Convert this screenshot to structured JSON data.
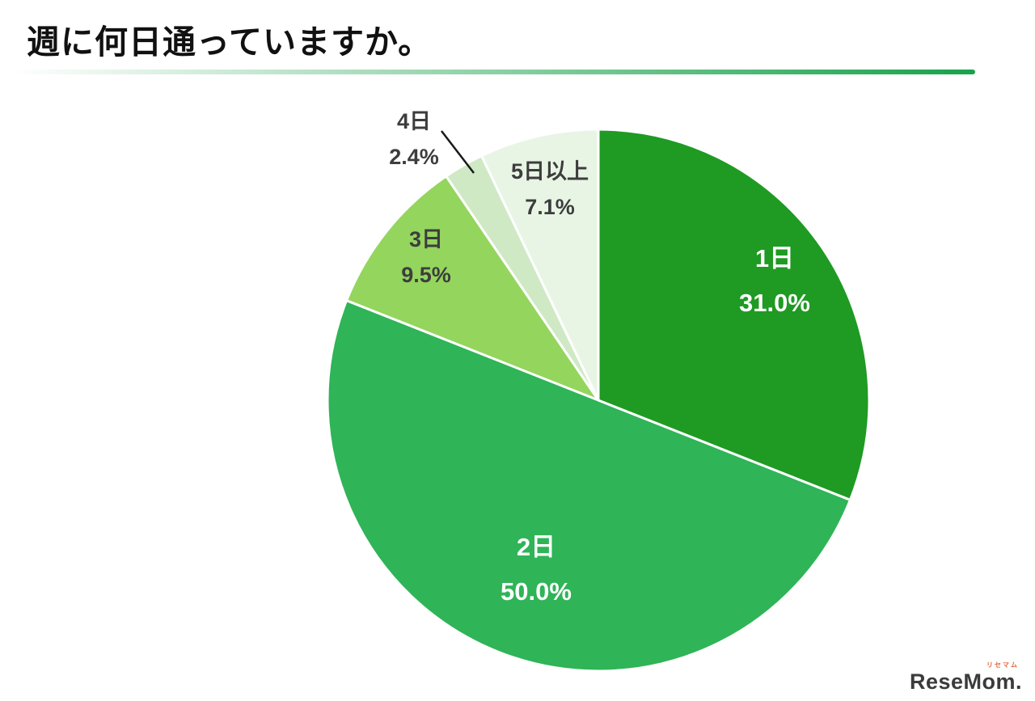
{
  "page": {
    "title": "週に何日通っていますか。",
    "accent_color": "#18a24b",
    "background_color": "#ffffff"
  },
  "chart_data": {
    "type": "pie",
    "title": "週に何日通っていますか。",
    "start_angle_deg": 0,
    "direction": "clockwise",
    "legend_position": "none",
    "slices": [
      {
        "label": "1日",
        "value": 31.0,
        "display": "31.0%",
        "color": "#1f9a23",
        "label_color": "#ffffff",
        "label_position": "inside"
      },
      {
        "label": "2日",
        "value": 50.0,
        "display": "50.0%",
        "color": "#2fb457",
        "label_color": "#ffffff",
        "label_position": "inside"
      },
      {
        "label": "3日",
        "value": 9.5,
        "display": "9.5%",
        "color": "#94d55e",
        "label_color": "#3d3d3d",
        "label_position": "outside"
      },
      {
        "label": "4日",
        "value": 2.4,
        "display": "2.4%",
        "color": "#cfe9c5",
        "label_color": "#3d3d3d",
        "label_position": "outside",
        "leader_line": true
      },
      {
        "label": "5日以上",
        "value": 7.1,
        "display": "7.1%",
        "color": "#e8f5e5",
        "label_color": "#3d3d3d",
        "label_position": "outside"
      }
    ]
  },
  "footer": {
    "logo_text": "ReseMom.",
    "logo_sub": "リセマム"
  }
}
